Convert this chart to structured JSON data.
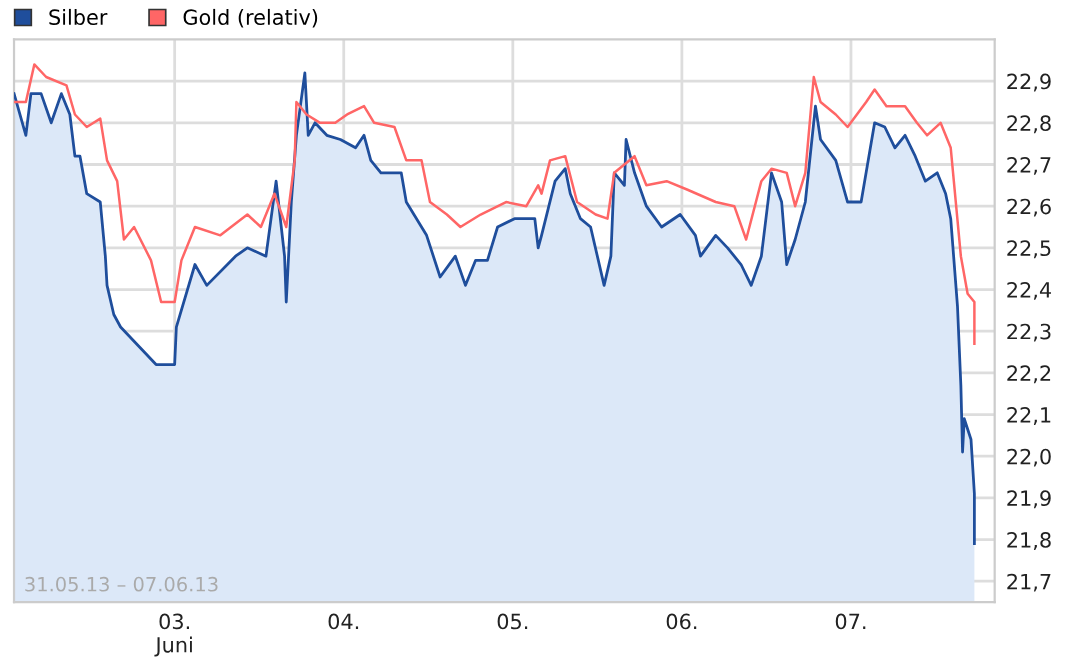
{
  "chart_data": {
    "type": "line",
    "xlim": [
      2.05,
      7.85
    ],
    "ylim": [
      21.65,
      23.0
    ],
    "xticks": [
      {
        "value": 3,
        "label": "03.\nJuni"
      },
      {
        "value": 4,
        "label": "04."
      },
      {
        "value": 5,
        "label": "05."
      },
      {
        "value": 6,
        "label": "06."
      },
      {
        "value": 7,
        "label": "07."
      }
    ],
    "yticks": [
      {
        "value": 21.7,
        "label": "21,7"
      },
      {
        "value": 21.8,
        "label": "21,8"
      },
      {
        "value": 21.9,
        "label": "21,9"
      },
      {
        "value": 22.0,
        "label": "22,0"
      },
      {
        "value": 22.1,
        "label": "22,1"
      },
      {
        "value": 22.2,
        "label": "22,2"
      },
      {
        "value": 22.3,
        "label": "22,3"
      },
      {
        "value": 22.4,
        "label": "22,4"
      },
      {
        "value": 22.5,
        "label": "22,5"
      },
      {
        "value": 22.6,
        "label": "22,6"
      },
      {
        "value": 22.7,
        "label": "22,7"
      },
      {
        "value": 22.8,
        "label": "22,8"
      },
      {
        "value": 22.9,
        "label": "22,9"
      }
    ],
    "grid": true,
    "legend": "top left",
    "annotations": [
      "31.05.13 – 07.06.13"
    ],
    "series": [
      {
        "name": "Silber",
        "type": "area",
        "color": "#1f4e9c",
        "x": [
          2.05,
          2.12,
          2.15,
          2.21,
          2.27,
          2.33,
          2.38,
          2.41,
          2.44,
          2.48,
          2.56,
          2.59,
          2.6,
          2.64,
          2.68,
          2.89,
          3.0,
          3.01,
          3.12,
          3.19,
          3.36,
          3.43,
          3.54,
          3.6,
          3.65,
          3.66,
          3.69,
          3.72,
          3.77,
          3.79,
          3.83,
          3.9,
          3.98,
          4.07,
          4.12,
          4.16,
          4.22,
          4.34,
          4.37,
          4.49,
          4.57,
          4.66,
          4.72,
          4.78,
          4.85,
          4.91,
          5.01,
          5.13,
          5.15,
          5.17,
          5.25,
          5.31,
          5.34,
          5.4,
          5.46,
          5.54,
          5.58,
          5.6,
          5.66,
          5.67,
          5.72,
          5.79,
          5.88,
          5.99,
          6.08,
          6.11,
          6.2,
          6.27,
          6.35,
          6.41,
          6.47,
          6.53,
          6.59,
          6.62,
          6.67,
          6.73,
          6.79,
          6.82,
          6.91,
          6.98,
          7.06,
          7.14,
          7.2,
          7.26,
          7.32,
          7.38,
          7.44,
          7.51,
          7.56,
          7.59,
          7.63,
          7.65,
          7.66,
          7.67,
          7.71,
          7.73,
          7.73
        ],
        "values": [
          22.87,
          22.77,
          22.87,
          22.87,
          22.8,
          22.87,
          22.82,
          22.72,
          22.72,
          22.63,
          22.61,
          22.48,
          22.41,
          22.34,
          22.31,
          22.22,
          22.22,
          22.31,
          22.46,
          22.41,
          22.48,
          22.5,
          22.48,
          22.66,
          22.48,
          22.37,
          22.61,
          22.77,
          22.92,
          22.77,
          22.8,
          22.77,
          22.76,
          22.74,
          22.77,
          22.71,
          22.68,
          22.68,
          22.61,
          22.53,
          22.43,
          22.48,
          22.41,
          22.47,
          22.47,
          22.55,
          22.57,
          22.57,
          22.5,
          22.53,
          22.66,
          22.69,
          22.63,
          22.57,
          22.55,
          22.41,
          22.48,
          22.68,
          22.65,
          22.76,
          22.68,
          22.6,
          22.55,
          22.58,
          22.53,
          22.48,
          22.53,
          22.5,
          22.46,
          22.41,
          22.48,
          22.68,
          22.61,
          22.46,
          22.52,
          22.61,
          22.84,
          22.76,
          22.71,
          22.61,
          22.61,
          22.8,
          22.79,
          22.74,
          22.77,
          22.72,
          22.66,
          22.68,
          22.63,
          22.57,
          22.36,
          22.17,
          22.01,
          22.09,
          22.04,
          21.91,
          21.79
        ]
      },
      {
        "name": "Gold (relativ)",
        "color": "#ff6666",
        "x": [
          2.05,
          2.12,
          2.17,
          2.24,
          2.36,
          2.41,
          2.48,
          2.56,
          2.6,
          2.66,
          2.7,
          2.76,
          2.86,
          2.92,
          3.0,
          3.04,
          3.12,
          3.27,
          3.43,
          3.51,
          3.59,
          3.66,
          3.71,
          3.72,
          3.78,
          3.86,
          3.95,
          4.02,
          4.12,
          4.18,
          4.3,
          4.37,
          4.46,
          4.51,
          4.61,
          4.69,
          4.81,
          4.96,
          5.08,
          5.15,
          5.17,
          5.22,
          5.31,
          5.38,
          5.49,
          5.56,
          5.6,
          5.72,
          5.79,
          5.91,
          6.03,
          6.2,
          6.31,
          6.38,
          6.47,
          6.53,
          6.62,
          6.67,
          6.73,
          6.78,
          6.82,
          6.91,
          6.98,
          7.09,
          7.14,
          7.21,
          7.32,
          7.39,
          7.45,
          7.53,
          7.59,
          7.65,
          7.69,
          7.73,
          7.73
        ],
        "values": [
          22.85,
          22.85,
          22.94,
          22.91,
          22.89,
          22.82,
          22.79,
          22.81,
          22.71,
          22.66,
          22.52,
          22.55,
          22.47,
          22.37,
          22.37,
          22.47,
          22.55,
          22.53,
          22.58,
          22.55,
          22.63,
          22.55,
          22.71,
          22.85,
          22.82,
          22.8,
          22.8,
          22.82,
          22.84,
          22.8,
          22.79,
          22.71,
          22.71,
          22.61,
          22.58,
          22.55,
          22.58,
          22.61,
          22.6,
          22.65,
          22.63,
          22.71,
          22.72,
          22.61,
          22.58,
          22.57,
          22.68,
          22.72,
          22.65,
          22.66,
          22.64,
          22.61,
          22.6,
          22.52,
          22.66,
          22.69,
          22.68,
          22.6,
          22.68,
          22.91,
          22.85,
          22.82,
          22.79,
          22.85,
          22.88,
          22.84,
          22.84,
          22.8,
          22.77,
          22.8,
          22.74,
          22.48,
          22.39,
          22.37,
          22.27
        ]
      }
    ]
  }
}
